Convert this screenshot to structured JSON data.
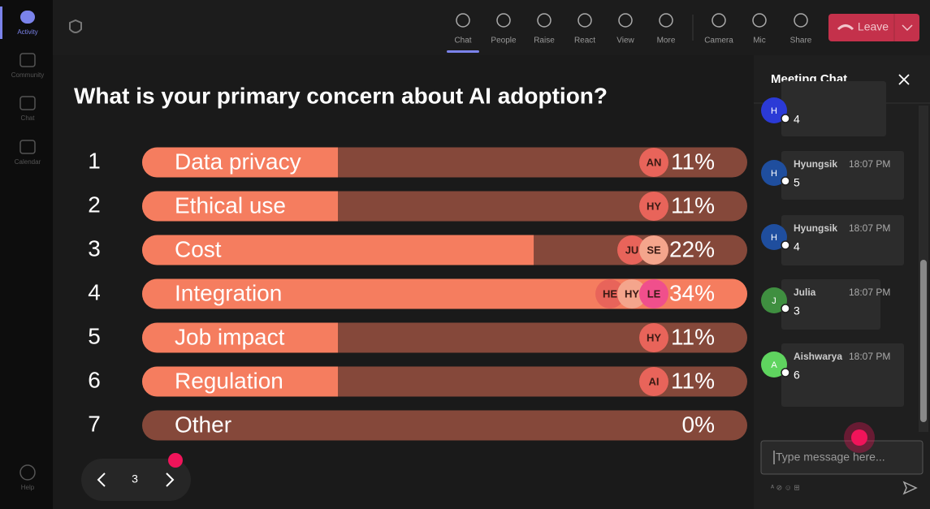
{
  "sidebar": {
    "items": [
      "Activity",
      "Community",
      "Chat",
      "Calendar"
    ],
    "help": "Help"
  },
  "toolbar": {
    "items": [
      "Chat",
      "People",
      "Raise",
      "React",
      "View",
      "More",
      "Camera",
      "Mic",
      "Share"
    ],
    "leave": "Leave"
  },
  "poll": {
    "question": "What is your primary concern about AI adoption?",
    "options": [
      {
        "number": "1",
        "label": "Data privacy",
        "percent": 11,
        "percent_label": "11%",
        "avatars": [
          {
            "initials": "AN",
            "color": "#e8645a"
          }
        ]
      },
      {
        "number": "2",
        "label": "Ethical use",
        "percent": 11,
        "percent_label": "11%",
        "avatars": [
          {
            "initials": "HY",
            "color": "#e8645a"
          }
        ]
      },
      {
        "number": "3",
        "label": "Cost",
        "percent": 22,
        "percent_label": "22%",
        "avatars": [
          {
            "initials": "JU",
            "color": "#e8645a"
          },
          {
            "initials": "SE",
            "color": "#f4a58c"
          }
        ]
      },
      {
        "number": "4",
        "label": "Integration",
        "percent": 34,
        "percent_label": "34%",
        "avatars": [
          {
            "initials": "HE",
            "color": "#e8645a"
          },
          {
            "initials": "HY",
            "color": "#f4a58c"
          },
          {
            "initials": "LE",
            "color": "#f04f8c"
          }
        ]
      },
      {
        "number": "5",
        "label": "Job impact",
        "percent": 11,
        "percent_label": "11%",
        "avatars": [
          {
            "initials": "HY",
            "color": "#e8645a"
          }
        ]
      },
      {
        "number": "6",
        "label": "Regulation",
        "percent": 11,
        "percent_label": "11%",
        "avatars": [
          {
            "initials": "AI",
            "color": "#e8645a"
          }
        ]
      },
      {
        "number": "7",
        "label": "Other",
        "percent": 0,
        "percent_label": "0%",
        "avatars": []
      }
    ],
    "page": "3"
  },
  "chat": {
    "title": "Meeting Chat",
    "placeholder": "Type message here...",
    "messages": [
      {
        "avatar": "H",
        "color": "#2b3ad6",
        "text": "4"
      },
      {
        "avatar": "H",
        "color": "#1f4e9e",
        "name": "Hyungsik",
        "time": "18:07 PM",
        "text": "5"
      },
      {
        "avatar": "H",
        "color": "#1f4e9e",
        "name": "Hyungsik",
        "time": "18:07 PM",
        "text": "4"
      },
      {
        "avatar": "J",
        "color": "#3f8f40",
        "name": "Julia",
        "time": "18:07 PM",
        "text": "3"
      },
      {
        "avatar": "A",
        "color": "#5fd45f",
        "name": "Aishwarya",
        "time": "18:07 PM",
        "text": "6"
      }
    ]
  }
}
